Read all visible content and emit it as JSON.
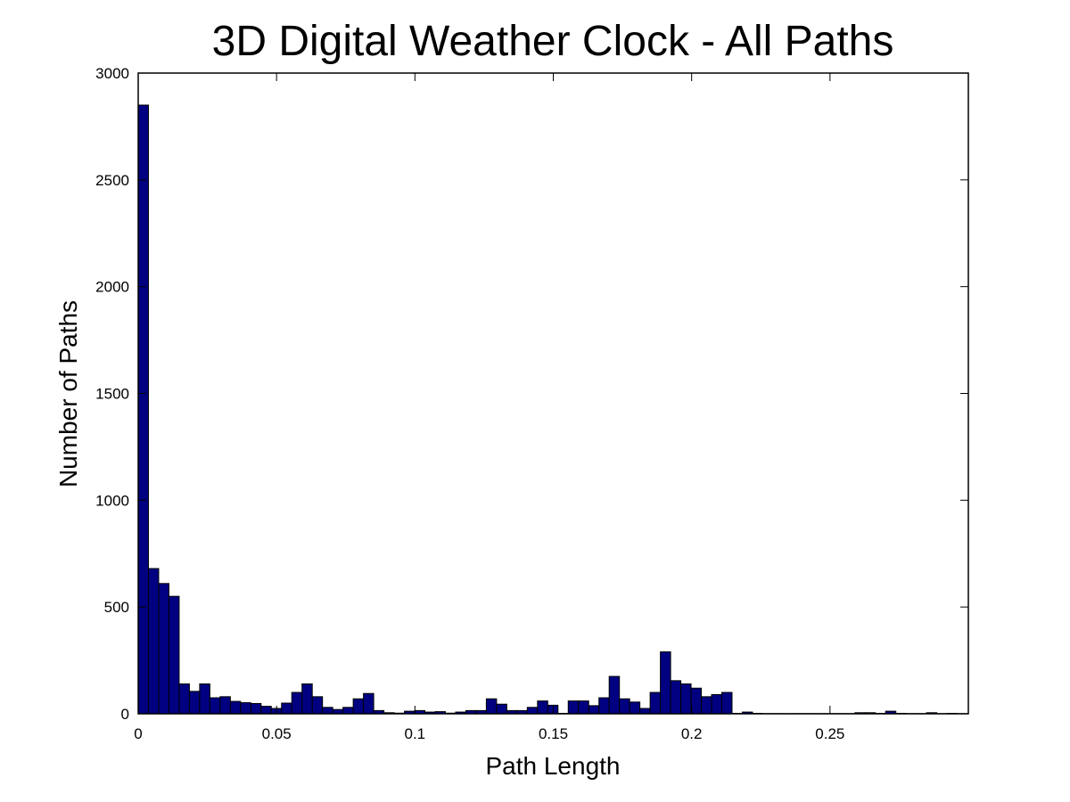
{
  "chart_data": {
    "type": "bar",
    "title": "3D Digital Weather Clock - All Paths",
    "xlabel": "Path Length",
    "ylabel": "Number of Paths",
    "xlim": [
      0,
      0.3
    ],
    "ylim": [
      0,
      3000
    ],
    "grid": false,
    "legend": "none",
    "bar_color": "#000080",
    "bin_width": 0.0037,
    "x_ticks": [
      0,
      0.05,
      0.1,
      0.15,
      0.2,
      0.25
    ],
    "x_tick_labels": [
      "0",
      "0.05",
      "0.1",
      "0.15",
      "0.2",
      "0.25"
    ],
    "y_ticks": [
      0,
      500,
      1000,
      1500,
      2000,
      2500,
      3000
    ],
    "y_tick_labels": [
      "0",
      "500",
      "1000",
      "1500",
      "2000",
      "2500",
      "3000"
    ],
    "bins_start": [
      0,
      0.0037,
      0.0074,
      0.0111,
      0.0148,
      0.0185,
      0.0222,
      0.0259,
      0.0296,
      0.0333,
      0.037,
      0.0407,
      0.0444,
      0.0481,
      0.0518,
      0.0555,
      0.0592,
      0.0629,
      0.0666,
      0.0703,
      0.074,
      0.0777,
      0.0814,
      0.0851,
      0.0888,
      0.0925,
      0.0962,
      0.0999,
      0.1036,
      0.1073,
      0.111,
      0.1147,
      0.1184,
      0.1221,
      0.1258,
      0.1295,
      0.1332,
      0.1369,
      0.1406,
      0.1443,
      0.148,
      0.1517,
      0.1554,
      0.1591,
      0.1628,
      0.1665,
      0.1702,
      0.1739,
      0.1776,
      0.1813,
      0.185,
      0.1887,
      0.1924,
      0.1961,
      0.1998,
      0.2035,
      0.2072,
      0.2109,
      0.2146,
      0.2183,
      0.222,
      0.2257,
      0.2294,
      0.2331,
      0.2368,
      0.2405,
      0.2442,
      0.2479,
      0.2516,
      0.2553,
      0.259,
      0.2627,
      0.2664,
      0.2701,
      0.2738,
      0.2775,
      0.2812,
      0.2849,
      0.2886,
      0.2923,
      0.296
    ],
    "values": [
      2850,
      680,
      610,
      550,
      140,
      105,
      140,
      75,
      80,
      58,
      52,
      48,
      35,
      25,
      50,
      100,
      140,
      80,
      30,
      20,
      30,
      70,
      95,
      15,
      5,
      3,
      12,
      15,
      8,
      10,
      3,
      8,
      15,
      15,
      70,
      45,
      15,
      15,
      30,
      60,
      40,
      2,
      60,
      60,
      38,
      75,
      175,
      70,
      55,
      25,
      100,
      290,
      155,
      140,
      120,
      80,
      90,
      100,
      2,
      8,
      2,
      1,
      1,
      1,
      1,
      1,
      1,
      1,
      1,
      1,
      5,
      5,
      2,
      12,
      2,
      1,
      1,
      5,
      1,
      2,
      1
    ]
  }
}
